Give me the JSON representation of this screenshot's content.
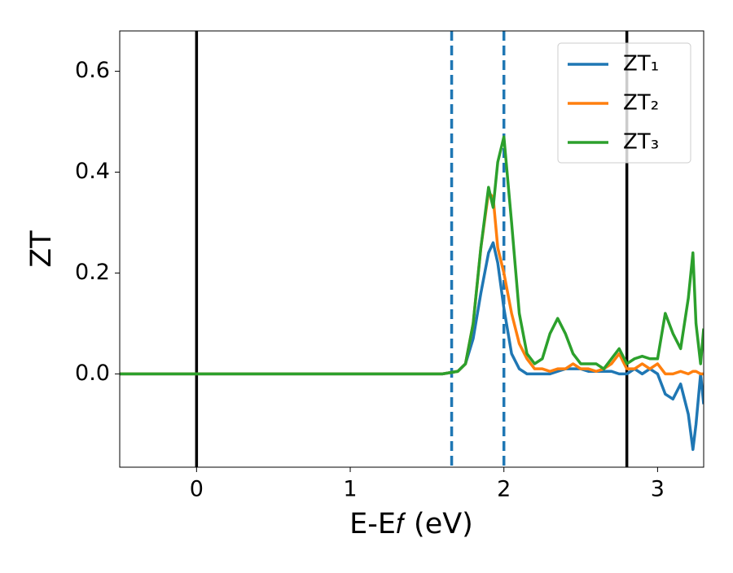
{
  "chart_data": {
    "type": "line",
    "xlabel": "E-E𝑓 (eV)",
    "ylabel": "ZT",
    "x": [
      -0.5,
      1.6,
      1.7,
      1.75,
      1.8,
      1.85,
      1.9,
      1.93,
      1.96,
      2.0,
      2.05,
      2.1,
      2.15,
      2.2,
      2.25,
      2.3,
      2.35,
      2.4,
      2.45,
      2.5,
      2.55,
      2.6,
      2.65,
      2.7,
      2.75,
      2.8,
      2.85,
      2.9,
      2.95,
      3.0,
      3.05,
      3.1,
      3.15,
      3.2,
      3.23,
      3.25,
      3.28,
      3.3
    ],
    "series": [
      {
        "name": "ZT₁",
        "color": "#1f77b4",
        "values": [
          0,
          0,
          0.005,
          0.02,
          0.07,
          0.16,
          0.24,
          0.26,
          0.22,
          0.13,
          0.04,
          0.01,
          0,
          0,
          0,
          0,
          0.005,
          0.01,
          0.01,
          0.01,
          0.005,
          0.005,
          0.005,
          0.005,
          0,
          0,
          0.01,
          0,
          0.01,
          0,
          -0.04,
          -0.05,
          -0.02,
          -0.08,
          -0.15,
          -0.1,
          0,
          -0.06
        ]
      },
      {
        "name": "ZT₂",
        "color": "#ff7f0e",
        "values": [
          0,
          0,
          0.005,
          0.02,
          0.1,
          0.25,
          0.36,
          0.35,
          0.25,
          0.2,
          0.12,
          0.06,
          0.03,
          0.01,
          0.01,
          0.005,
          0.01,
          0.01,
          0.02,
          0.01,
          0.01,
          0.005,
          0.01,
          0.02,
          0.04,
          0.01,
          0.01,
          0.02,
          0.01,
          0.02,
          0,
          0,
          0.005,
          0,
          0.005,
          0.005,
          0,
          0
        ]
      },
      {
        "name": "ZT₃",
        "color": "#2ca02c",
        "values": [
          0,
          0,
          0.005,
          0.02,
          0.1,
          0.25,
          0.37,
          0.33,
          0.42,
          0.47,
          0.3,
          0.12,
          0.04,
          0.02,
          0.03,
          0.08,
          0.11,
          0.08,
          0.04,
          0.02,
          0.02,
          0.02,
          0.01,
          0.03,
          0.05,
          0.02,
          0.03,
          0.035,
          0.03,
          0.03,
          0.12,
          0.08,
          0.05,
          0.15,
          0.24,
          0.1,
          0.02,
          0.09
        ]
      }
    ],
    "vlines": [
      {
        "x": 0,
        "color": "#000000",
        "style": "solid"
      },
      {
        "x": 2.8,
        "color": "#000000",
        "style": "solid"
      },
      {
        "x": 1.66,
        "color": "#1f77b4",
        "style": "dashed"
      },
      {
        "x": 2.0,
        "color": "#1f77b4",
        "style": "dashed"
      }
    ],
    "xlim": [
      -0.5,
      3.3
    ],
    "ylim": [
      -0.185,
      0.68
    ],
    "xticks": [
      0,
      1,
      2,
      3
    ],
    "yticks": [
      {
        "value": 0,
        "label": "0.0"
      },
      {
        "value": 0.2,
        "label": "0.2"
      },
      {
        "value": 0.4,
        "label": "0.4"
      },
      {
        "value": 0.6,
        "label": "0.6"
      }
    ],
    "legend": "upper right"
  }
}
